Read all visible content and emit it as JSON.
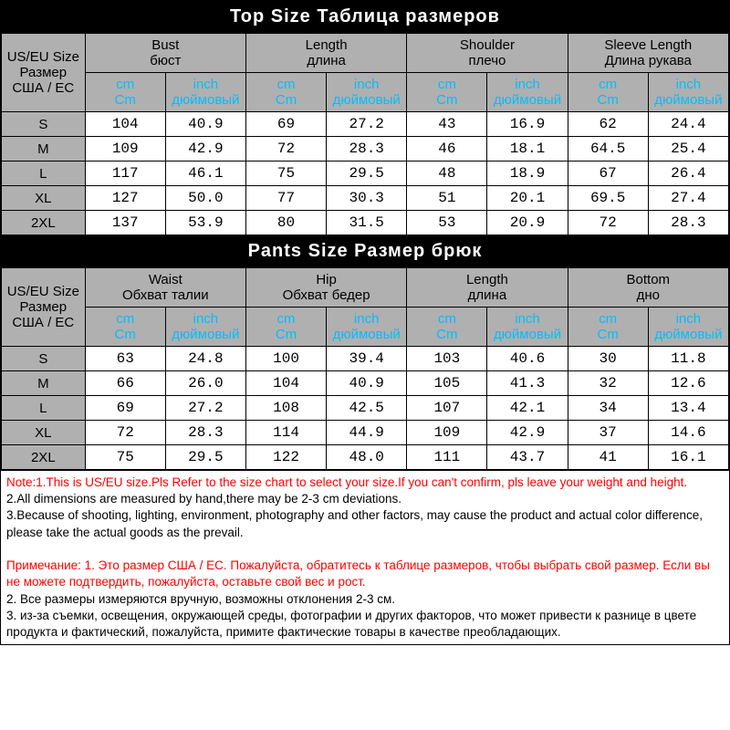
{
  "top_title": "Top Size   Таблица размеров",
  "pants_title": "Pants Size   Размер брюк",
  "size_header": {
    "en": "US/EU Size",
    "ru1": "Размер",
    "ru2": "США / ЕС"
  },
  "unit_cm": {
    "en": "cm",
    "ru": "Cm"
  },
  "unit_inch": {
    "en": "inch",
    "ru": "дюймовый"
  },
  "top_columns": [
    {
      "en": "Bust",
      "ru": "бюст"
    },
    {
      "en": "Length",
      "ru": "длина"
    },
    {
      "en": "Shoulder",
      "ru": "плечо"
    },
    {
      "en": "Sleeve Length",
      "ru": "Длина рукава"
    }
  ],
  "pants_columns": [
    {
      "en": "Waist",
      "ru": "Обхват талии"
    },
    {
      "en": "Hip",
      "ru": "Обхват бедер"
    },
    {
      "en": "Length",
      "ru": "длина"
    },
    {
      "en": "Bottom",
      "ru": "дно"
    }
  ],
  "sizes": [
    "S",
    "M",
    "L",
    "XL",
    "2XL"
  ],
  "top_data": [
    [
      "104",
      "40.9",
      "69",
      "27.2",
      "43",
      "16.9",
      "62",
      "24.4"
    ],
    [
      "109",
      "42.9",
      "72",
      "28.3",
      "46",
      "18.1",
      "64.5",
      "25.4"
    ],
    [
      "117",
      "46.1",
      "75",
      "29.5",
      "48",
      "18.9",
      "67",
      "26.4"
    ],
    [
      "127",
      "50.0",
      "77",
      "30.3",
      "51",
      "20.1",
      "69.5",
      "27.4"
    ],
    [
      "137",
      "53.9",
      "80",
      "31.5",
      "53",
      "20.9",
      "72",
      "28.3"
    ]
  ],
  "pants_data": [
    [
      "63",
      "24.8",
      "100",
      "39.4",
      "103",
      "40.6",
      "30",
      "11.8"
    ],
    [
      "66",
      "26.0",
      "104",
      "40.9",
      "105",
      "41.3",
      "32",
      "12.6"
    ],
    [
      "69",
      "27.2",
      "108",
      "42.5",
      "107",
      "42.1",
      "34",
      "13.4"
    ],
    [
      "72",
      "28.3",
      "114",
      "44.9",
      "109",
      "42.9",
      "37",
      "14.6"
    ],
    [
      "75",
      "29.5",
      "122",
      "48.0",
      "111",
      "43.7",
      "41",
      "16.1"
    ]
  ],
  "notes_en": [
    "Note:1.This is US/EU size.Pls Refer to the size chart to select your size.If you can't confirm, pls leave your weight and height.",
    "2.All dimensions are measured by hand,there may be 2-3 cm deviations.",
    "3.Because of shooting, lighting, environment, photography and other factors, may cause the product and actual color difference, please take the actual goods as the prevail."
  ],
  "notes_ru": [
    "Примечание: 1. Это размер США / ЕС. Пожалуйста, обратитесь к таблице размеров, чтобы выбрать свой размер. Если вы не можете подтвердить, пожалуйста, оставьте свой вес и рост.",
    "2. Все размеры измеряются вручную, возможны отклонения 2-3 см.",
    "3. из-за съемки, освещения, окружающей среды, фотографии и других факторов, что может привести к разнице в цвете продукта и фактический, пожалуйста, примите фактические товары в качестве преобладающих."
  ],
  "colors": {
    "title_bg": "#000000",
    "title_fg": "#ffffff",
    "header_bg": "#b0b0b0",
    "unit_fg": "#00bfff",
    "note_red": "#ff0000",
    "border": "#000000",
    "cell_bg": "#ffffff"
  }
}
